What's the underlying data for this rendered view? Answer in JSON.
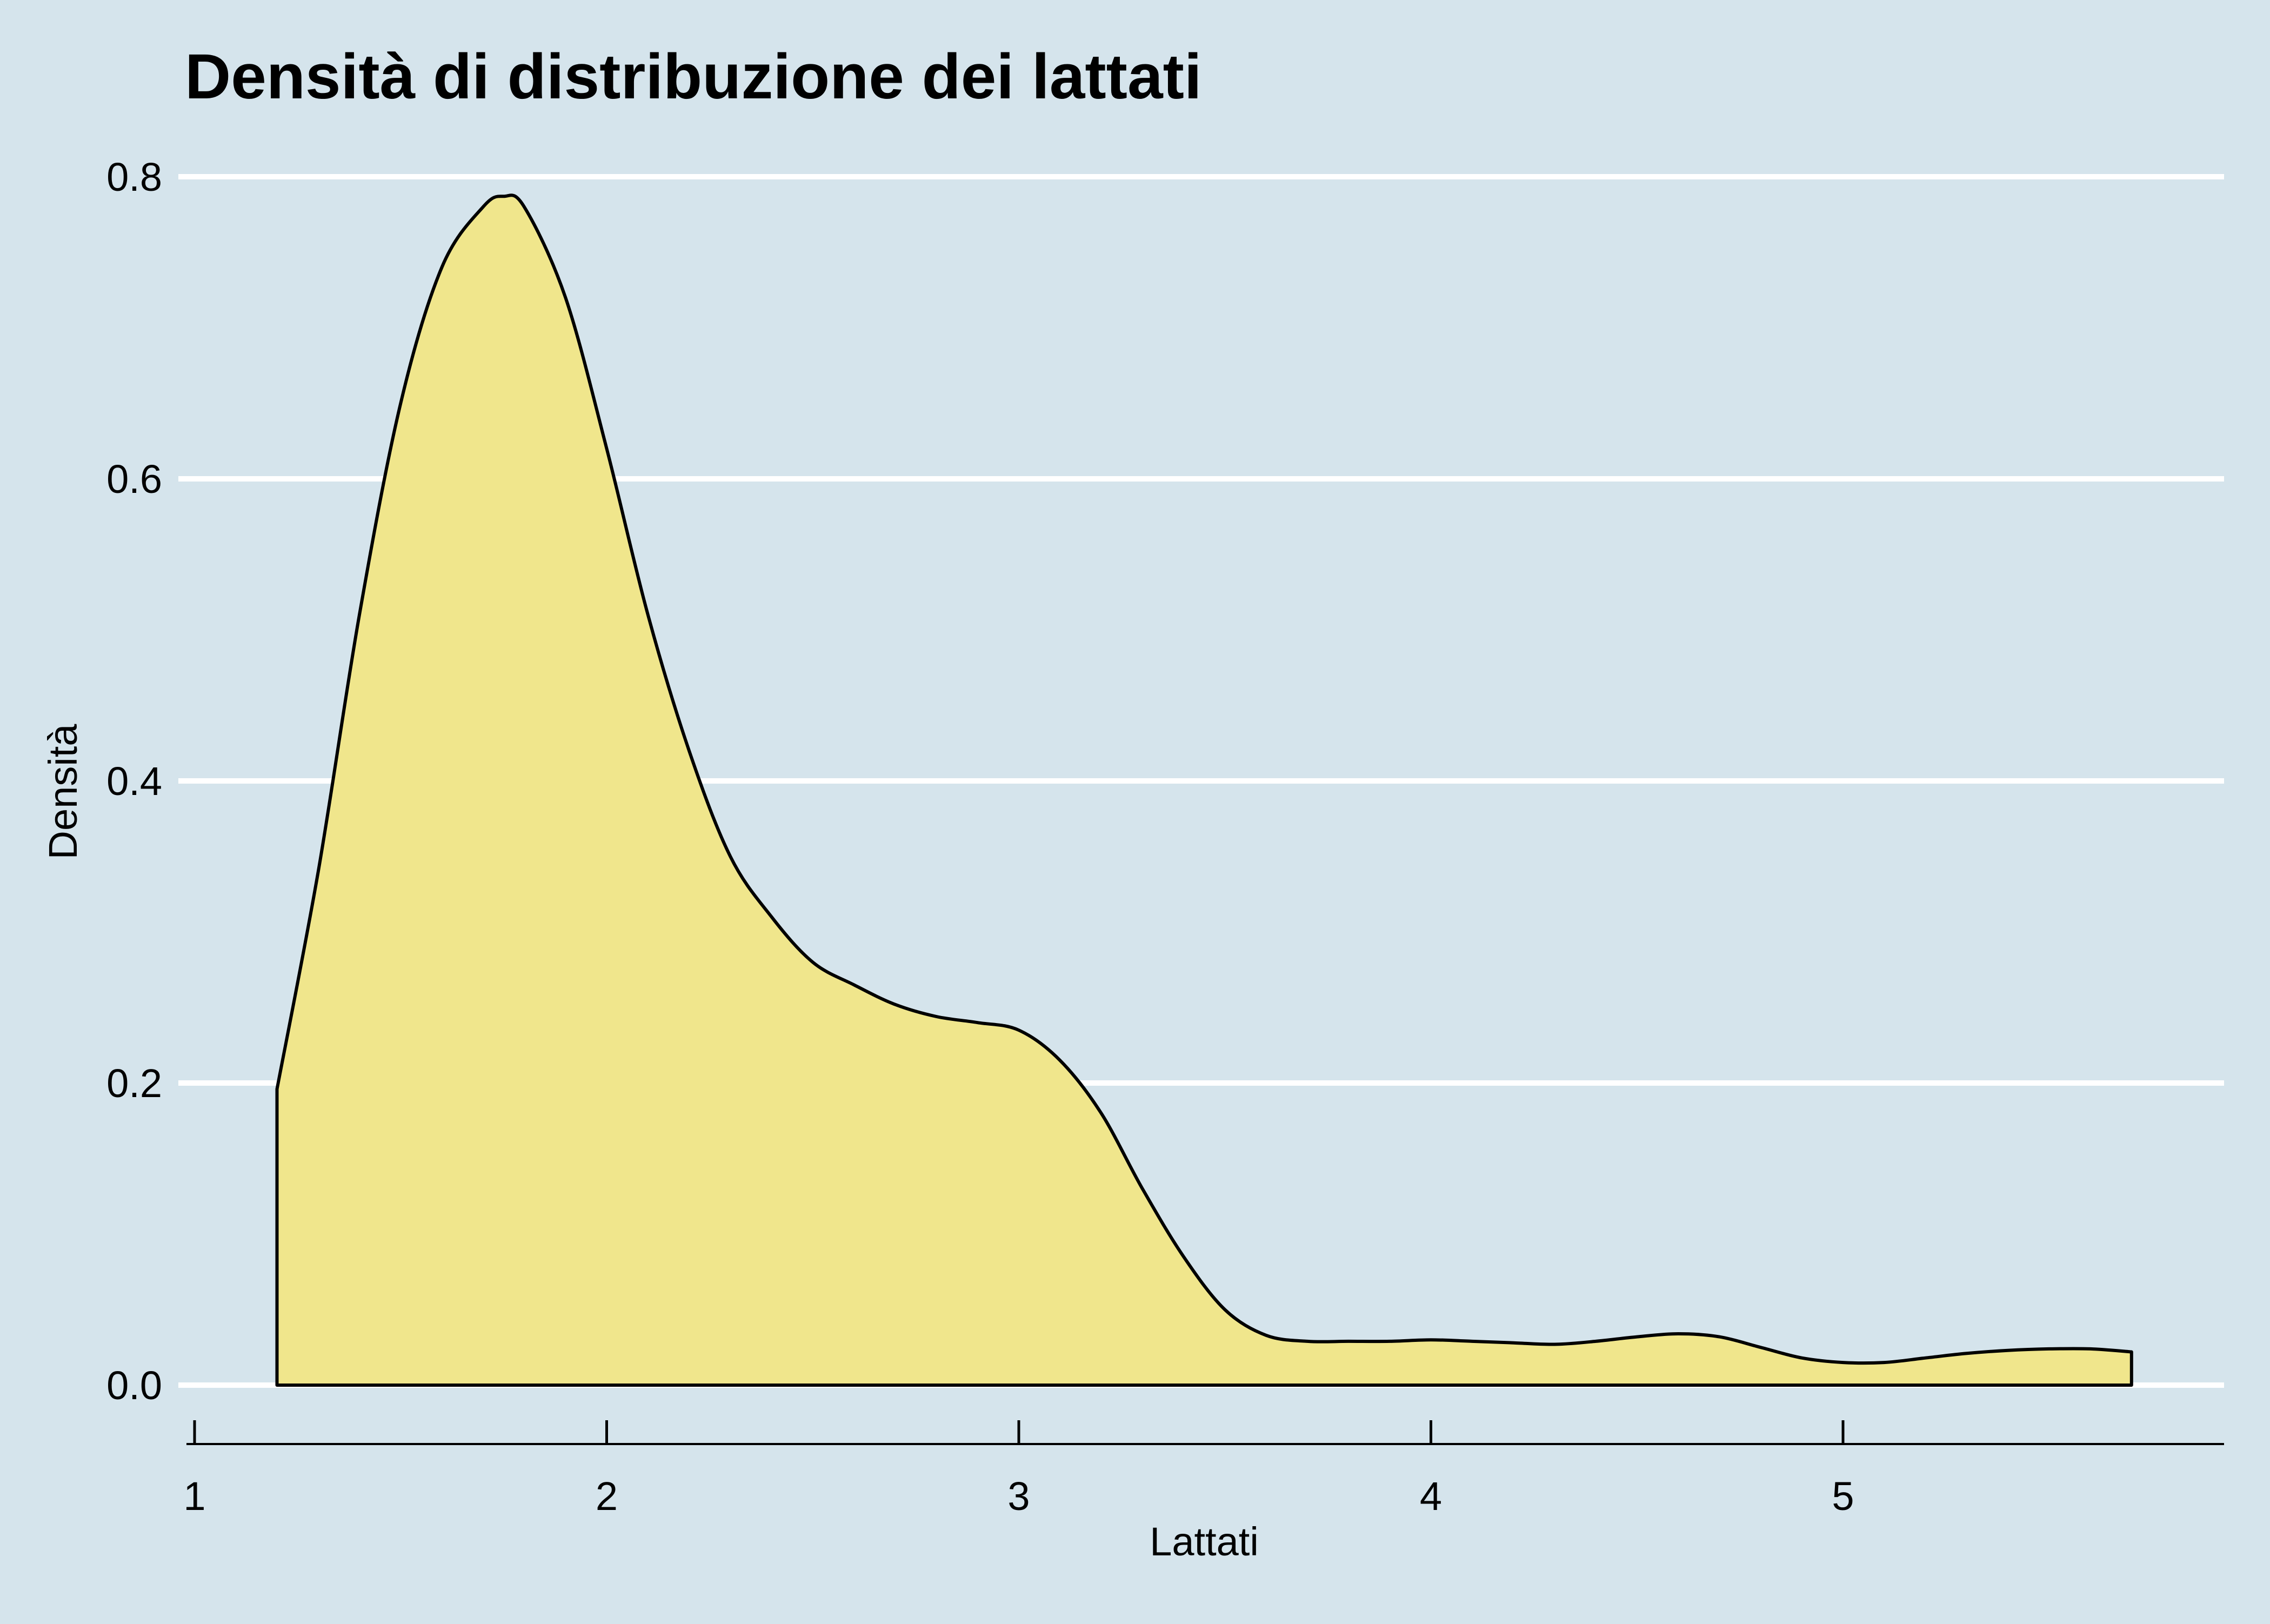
{
  "chart_data": {
    "type": "area",
    "title": "Densità di distribuzione dei lattati",
    "xlabel": "Lattati",
    "ylabel": "Densità",
    "xlim": [
      1,
      5.9
    ],
    "ylim": [
      -0.037,
      0.8
    ],
    "x_ticks": [
      1,
      2,
      3,
      4,
      5
    ],
    "x_tick_labels": [
      "1",
      "2",
      "3",
      "4",
      "5"
    ],
    "y_ticks": [
      0.0,
      0.2,
      0.4,
      0.6,
      0.8
    ],
    "y_tick_labels": [
      "0.0",
      "0.2",
      "0.4",
      "0.6",
      "0.8"
    ],
    "grid": "horizontal",
    "colors": {
      "background": "#d5e4ec",
      "fill": "#f0e68c",
      "outline": "#000000",
      "grid": "#ffffff"
    },
    "series": [
      {
        "x": [
          1.2,
          1.3,
          1.4,
          1.5,
          1.6,
          1.7,
          1.75,
          1.8,
          1.9,
          2.0,
          2.1,
          2.2,
          2.3,
          2.4,
          2.5,
          2.6,
          2.7,
          2.8,
          2.9,
          3.0,
          3.1,
          3.2,
          3.3,
          3.4,
          3.5,
          3.6,
          3.7,
          3.8,
          3.9,
          4.0,
          4.1,
          4.2,
          4.3,
          4.4,
          4.5,
          4.6,
          4.7,
          4.8,
          4.9,
          5.0,
          5.1,
          5.2,
          5.3,
          5.4,
          5.5,
          5.6,
          5.7
        ],
        "y": [
          0.196,
          0.34,
          0.51,
          0.65,
          0.74,
          0.78,
          0.787,
          0.78,
          0.72,
          0.62,
          0.51,
          0.42,
          0.35,
          0.31,
          0.28,
          0.265,
          0.252,
          0.244,
          0.24,
          0.235,
          0.215,
          0.18,
          0.13,
          0.085,
          0.05,
          0.033,
          0.029,
          0.029,
          0.029,
          0.03,
          0.029,
          0.028,
          0.027,
          0.029,
          0.032,
          0.034,
          0.032,
          0.025,
          0.018,
          0.015,
          0.015,
          0.018,
          0.021,
          0.023,
          0.024,
          0.024,
          0.022
        ]
      }
    ]
  }
}
